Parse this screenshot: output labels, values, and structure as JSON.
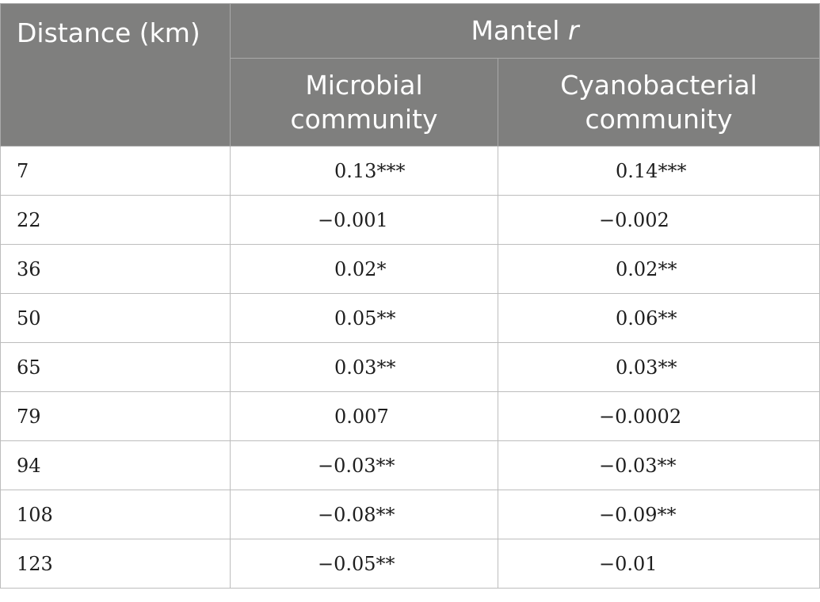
{
  "table": {
    "header": {
      "distance": "Distance (km)",
      "mantel_prefix": "Mantel ",
      "mantel_var": "r",
      "microbial": [
        "Microbial",
        "community"
      ],
      "cyanobacterial": [
        "Cyanobacterial",
        "community"
      ]
    },
    "rows": [
      {
        "distance": "7",
        "microbial": "0.13***",
        "cyanobacterial": "0.14***"
      },
      {
        "distance": "22",
        "microbial": "−0.001",
        "cyanobacterial": "−0.002"
      },
      {
        "distance": "36",
        "microbial": "0.02*",
        "cyanobacterial": "0.02**"
      },
      {
        "distance": "50",
        "microbial": "0.05**",
        "cyanobacterial": "0.06**"
      },
      {
        "distance": "65",
        "microbial": "0.03**",
        "cyanobacterial": "0.03**"
      },
      {
        "distance": "79",
        "microbial": "0.007",
        "cyanobacterial": "−0.0002"
      },
      {
        "distance": "94",
        "microbial": "−0.03**",
        "cyanobacterial": "−0.03**"
      },
      {
        "distance": "108",
        "microbial": "−0.08**",
        "cyanobacterial": "−0.09**"
      },
      {
        "distance": "123",
        "microbial": "−0.05**",
        "cyanobacterial": "−0.01"
      }
    ]
  }
}
